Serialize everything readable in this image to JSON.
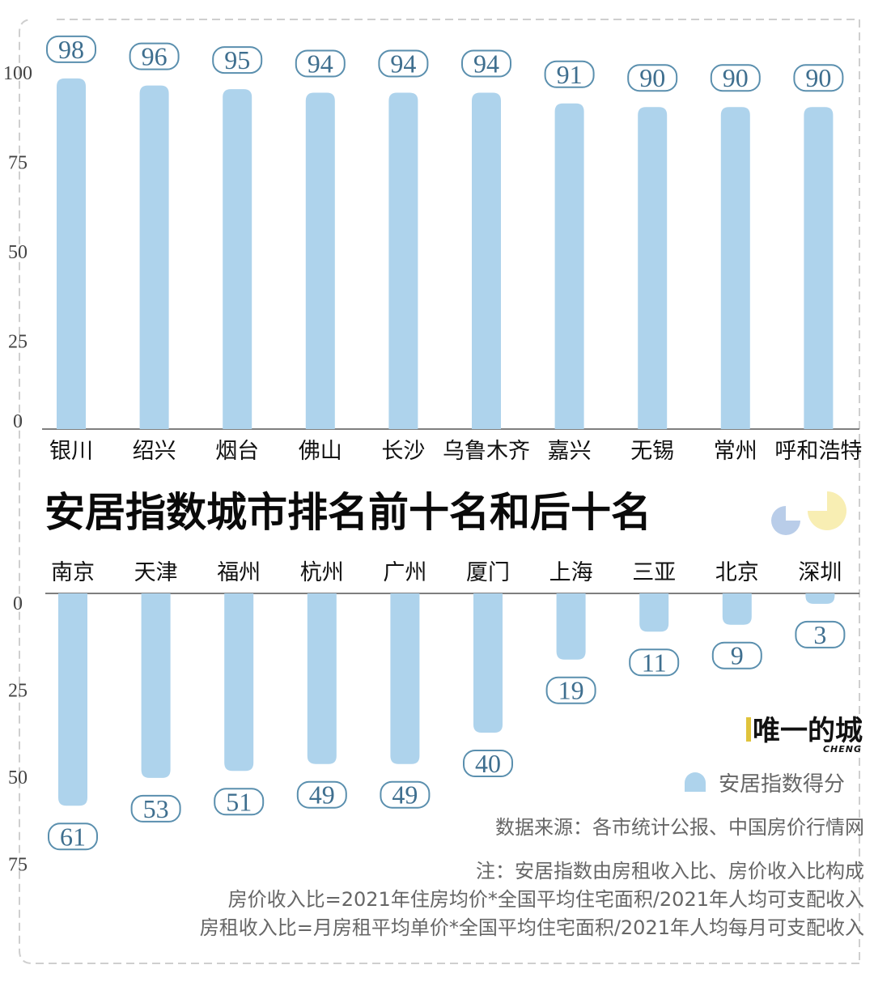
{
  "title": "安居指数城市排名前十名和后十名",
  "colors": {
    "bar": "#aed3ec",
    "label_border": "#5a8fae",
    "label_text": "#3f6f8f",
    "deco_blue": "#b9cde9",
    "deco_yellow": "#f8eeb3"
  },
  "chart_data": [
    {
      "type": "bar",
      "title": "",
      "categories": [
        "银川",
        "绍兴",
        "烟台",
        "佛山",
        "长沙",
        "乌鲁木齐",
        "嘉兴",
        "无锡",
        "常州",
        "呼和浩特"
      ],
      "series": [
        {
          "name": "安居指数得分",
          "values": [
            98,
            96,
            95,
            94,
            94,
            94,
            91,
            90,
            90,
            90
          ]
        }
      ],
      "yticks": [
        "0",
        "25",
        "50",
        "75",
        "100"
      ],
      "ylim": [
        0,
        100
      ],
      "direction": "up"
    },
    {
      "type": "bar",
      "title": "",
      "categories": [
        "南京",
        "天津",
        "福州",
        "杭州",
        "广州",
        "厦门",
        "上海",
        "三亚",
        "北京",
        "深圳"
      ],
      "series": [
        {
          "name": "安居指数得分",
          "values": [
            61,
            53,
            51,
            49,
            49,
            40,
            19,
            11,
            9,
            3
          ]
        }
      ],
      "yticks": [
        "0",
        "25",
        "50",
        "75"
      ],
      "ylim": [
        0,
        75
      ],
      "direction": "down"
    }
  ],
  "legend": {
    "label": "安居指数得分"
  },
  "source": "数据来源：各市统计公报、中国房价行情网",
  "notes": [
    "注：安居指数由房租收入比、房价收入比构成",
    "房价收入比=2021年住房均价*全国平均住宅面积/2021年人均可支配收入",
    "房租收入比=月房租平均单价*全国平均住宅面积/2021年人均每月可支配收入"
  ],
  "logo": {
    "main": "唯一的城",
    "sub": "CHENG"
  }
}
